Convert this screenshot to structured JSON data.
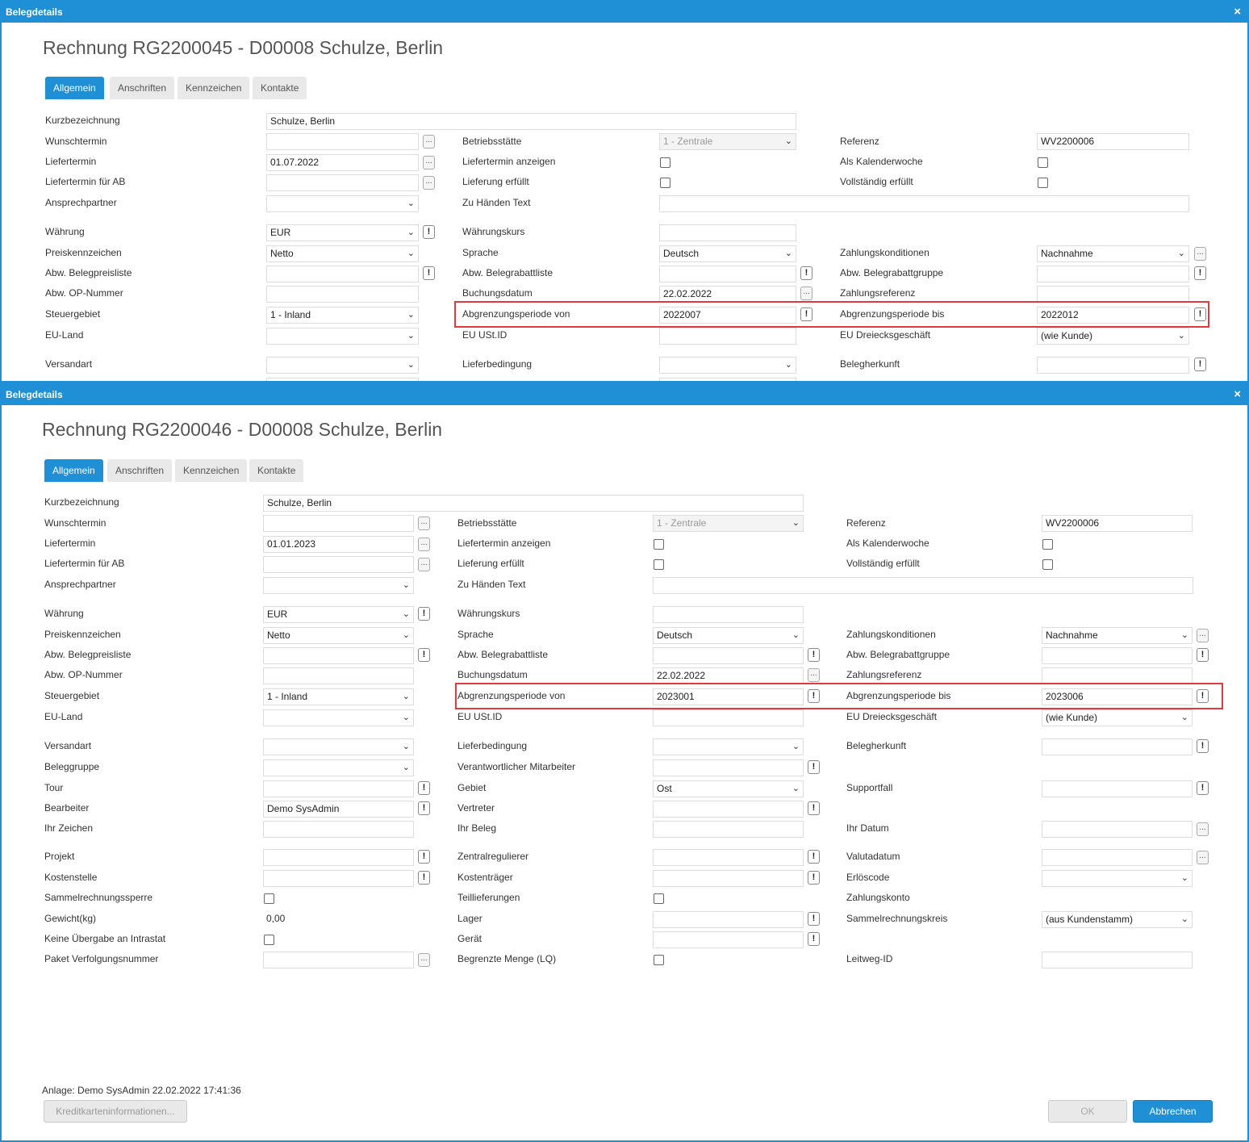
{
  "window_title": "Belegdetails",
  "close_glyph": "×",
  "tabs": [
    "Allgemein",
    "Anschriften",
    "Kennzeichen",
    "Kontakte"
  ],
  "labels": {
    "kurzbezeichnung": "Kurzbezeichnung",
    "wunschtermin": "Wunschtermin",
    "liefertermin": "Liefertermin",
    "liefertermin_ab": "Liefertermin für AB",
    "ansprechpartner": "Ansprechpartner",
    "waehrung": "Währung",
    "preiskennzeichen": "Preiskennzeichen",
    "abw_belegpreisliste": "Abw. Belegpreisliste",
    "abw_op_nummer": "Abw. OP-Nummer",
    "steuergebiet": "Steuergebiet",
    "eu_land": "EU-Land",
    "versandart": "Versandart",
    "beleggruppe": "Beleggruppe",
    "tour": "Tour",
    "bearbeiter": "Bearbeiter",
    "ihr_zeichen": "Ihr Zeichen",
    "projekt": "Projekt",
    "kostenstelle": "Kostenstelle",
    "sammelrechnungssperre": "Sammelrechnungssperre",
    "gewicht": "Gewicht(kg)",
    "keine_uebergabe": "Keine Übergabe an Intrastat",
    "paket": "Paket Verfolgungsnummer",
    "betriebsstaette": "Betriebsstätte",
    "liefertermin_anzeigen": "Liefertermin anzeigen",
    "lieferung_erfuellt": "Lieferung erfüllt",
    "zu_haenden": "Zu Händen Text",
    "waehrungskurs": "Währungskurs",
    "sprache": "Sprache",
    "abw_belegrabattliste": "Abw. Belegrabattliste",
    "buchungsdatum": "Buchungsdatum",
    "abgrenzung_von": "Abgrenzungsperiode von",
    "eu_ustid": "EU USt.ID",
    "lieferbedingung": "Lieferbedingung",
    "verantwortlicher": "Verantwortlicher Mitarbeiter",
    "gebiet": "Gebiet",
    "vertreter": "Vertreter",
    "ihr_beleg": "Ihr Beleg",
    "zentralregulierer": "Zentralregulierer",
    "kostentraeger": "Kostenträger",
    "teillieferungen": "Teillieferungen",
    "lager": "Lager",
    "geraet": "Gerät",
    "begrenzte_menge": "Begrenzte Menge (LQ)",
    "referenz": "Referenz",
    "als_kalenderwoche": "Als Kalenderwoche",
    "vollstaendig_erfuellt": "Vollständig erfüllt",
    "zahlungskonditionen": "Zahlungskonditionen",
    "abw_belegrabattgruppe": "Abw. Belegrabattgruppe",
    "zahlungsreferenz": "Zahlungsreferenz",
    "abgrenzung_bis": "Abgrenzungsperiode bis",
    "eu_dreiecksgeschaeft": "EU Dreiecksgeschäft",
    "belegherkunft": "Belegherkunft",
    "supportfall": "Supportfall",
    "ihr_datum": "Ihr Datum",
    "valutadatum": "Valutadatum",
    "erloescode": "Erlöscode",
    "zahlungskonto": "Zahlungskonto",
    "sammelrechnungskreis": "Sammelrechnungskreis",
    "leitweg_id": "Leitweg-ID"
  },
  "ellipsis": "...",
  "bang": "!",
  "chev": "⌄",
  "dialog1": {
    "title": "Rechnung RG2200045 - D00008 Schulze, Berlin",
    "kurzbezeichnung": "Schulze, Berlin",
    "liefertermin": "01.07.2022",
    "waehrung": "EUR",
    "preiskennzeichen": "Netto",
    "steuergebiet": "1 - Inland",
    "betriebsstaette": "1 - Zentrale",
    "sprache": "Deutsch",
    "buchungsdatum": "22.02.2022",
    "abgrenzung_von": "2022007",
    "referenz": "WV2200006",
    "zahlungskonditionen": "Nachnahme",
    "abgrenzung_bis": "2022012",
    "eu_dreiecksgeschaeft": "(wie Kunde)"
  },
  "dialog2": {
    "title": "Rechnung RG2200046 - D00008 Schulze, Berlin",
    "kurzbezeichnung": "Schulze, Berlin",
    "liefertermin": "01.01.2023",
    "waehrung": "EUR",
    "preiskennzeichen": "Netto",
    "steuergebiet": "1 - Inland",
    "bearbeiter": "Demo SysAdmin",
    "gewicht": "0,00",
    "betriebsstaette": "1 - Zentrale",
    "sprache": "Deutsch",
    "buchungsdatum": "22.02.2022",
    "abgrenzung_von": "2023001",
    "gebiet": "Ost",
    "referenz": "WV2200006",
    "zahlungskonditionen": "Nachnahme",
    "abgrenzung_bis": "2023006",
    "eu_dreiecksgeschaeft": "(wie Kunde)",
    "sammelrechnungskreis": "(aus Kundenstamm)",
    "anlage": "Anlage: Demo SysAdmin 22.02.2022 17:41:36",
    "btn_kredit": "Kreditkarteninformationen...",
    "btn_ok": "OK",
    "btn_abbrechen": "Abbrechen"
  },
  "colors": {
    "accent": "#1f8fd6",
    "highlight": "#e0393e"
  }
}
